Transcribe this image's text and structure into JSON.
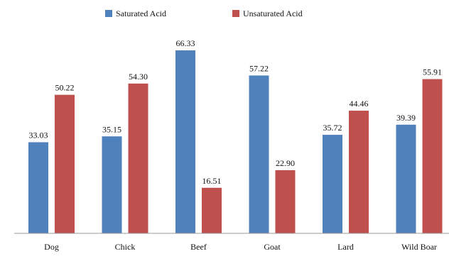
{
  "chart_data": {
    "type": "bar",
    "title": "",
    "xlabel": "",
    "ylabel": "",
    "ylim": [
      0,
      70
    ],
    "grid": false,
    "legend_position": "top",
    "categories": [
      "Dog",
      "Chick",
      "Beef",
      "Goat",
      "Lard",
      "Wild Boar"
    ],
    "series": [
      {
        "name": "Saturated Acid",
        "color": "#4F81BD",
        "values": [
          33.03,
          35.15,
          66.33,
          57.22,
          35.72,
          39.39
        ],
        "labels": [
          "33.03",
          "35.15",
          "66.33",
          "57.22",
          "35.72",
          "39.39"
        ]
      },
      {
        "name": "Unsaturated Acid",
        "color": "#C0504D",
        "values": [
          50.22,
          54.3,
          16.51,
          22.9,
          44.46,
          55.91
        ],
        "labels": [
          "50.22",
          "54.30",
          "16.51",
          "22.90",
          "44.46",
          "55.91"
        ]
      }
    ]
  }
}
